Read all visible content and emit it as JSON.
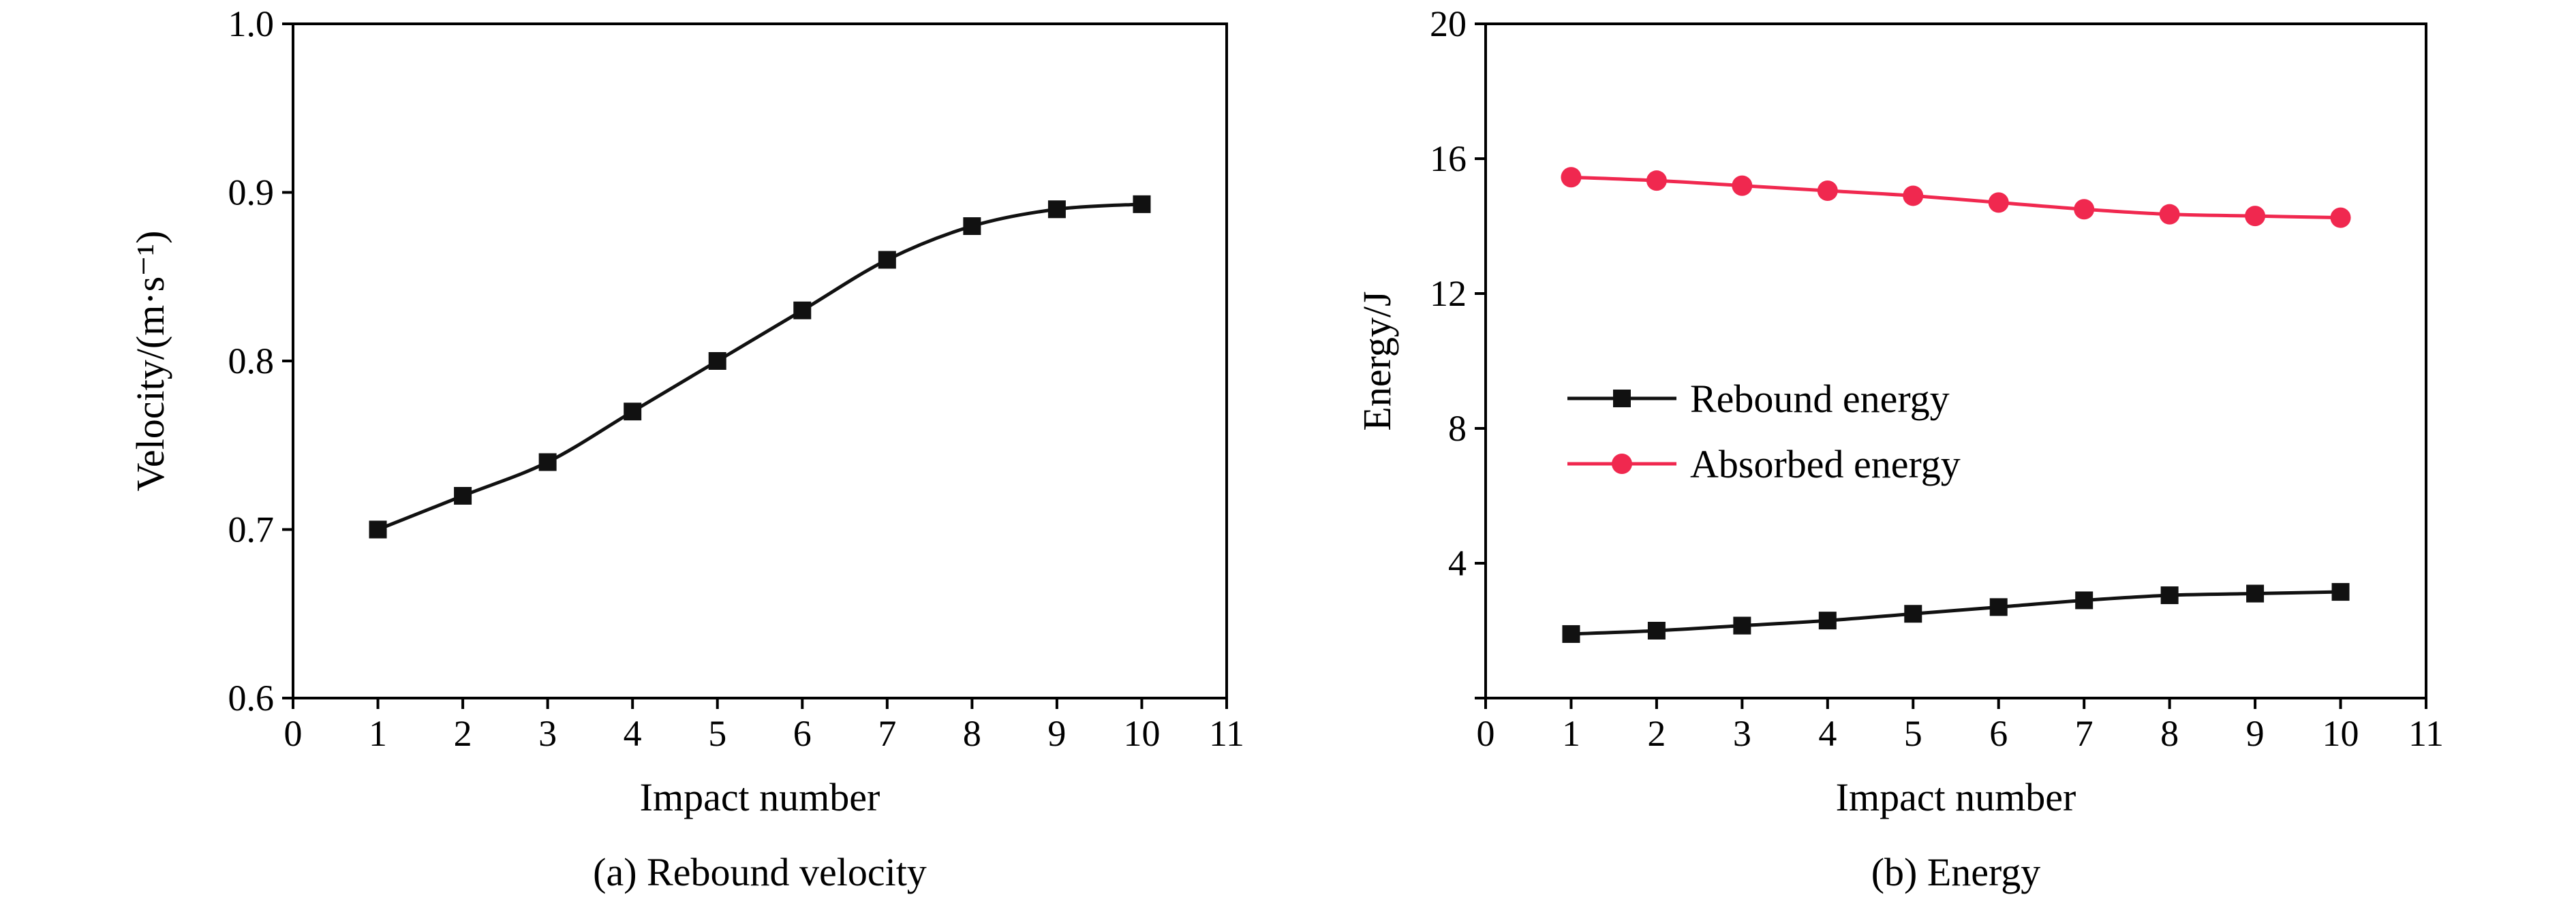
{
  "chart_data": [
    {
      "type": "line",
      "caption": "(a) Rebound velocity",
      "xlabel": "Impact number",
      "ylabel": "Velocity/(m·s⁻¹)",
      "xlim": [
        0,
        11
      ],
      "ylim": [
        0.6,
        1.0
      ],
      "xticks": [
        0,
        1,
        2,
        3,
        4,
        5,
        6,
        7,
        8,
        9,
        10,
        11
      ],
      "yticks": [
        0.6,
        0.7,
        0.8,
        0.9,
        1.0
      ],
      "ytick_labels": [
        "0.6",
        "0.7",
        "0.8",
        "0.9",
        "1.0"
      ],
      "grid": false,
      "legend": null,
      "series": [
        {
          "color": "#111111",
          "marker": "square",
          "x": [
            1,
            2,
            3,
            4,
            5,
            6,
            7,
            8,
            9,
            10
          ],
          "values": [
            0.7,
            0.72,
            0.74,
            0.77,
            0.8,
            0.83,
            0.86,
            0.88,
            0.89,
            0.893
          ]
        }
      ]
    },
    {
      "type": "line",
      "caption": "(b) Energy",
      "xlabel": "Impact number",
      "ylabel": "Energy/J",
      "xlim": [
        0,
        11
      ],
      "ylim": [
        0,
        20
      ],
      "xticks": [
        0,
        1,
        2,
        3,
        4,
        5,
        6,
        7,
        8,
        9,
        10,
        11
      ],
      "yticks": [
        0,
        4,
        8,
        12,
        16,
        20
      ],
      "ytick_labels": [
        "",
        "4",
        "8",
        "12",
        "16",
        "20"
      ],
      "grid": false,
      "legend": "center-left",
      "series": [
        {
          "name": "Rebound energy",
          "color": "#111111",
          "marker": "square",
          "x": [
            1,
            2,
            3,
            4,
            5,
            6,
            7,
            8,
            9,
            10
          ],
          "values": [
            1.9,
            2.0,
            2.15,
            2.3,
            2.5,
            2.7,
            2.9,
            3.05,
            3.1,
            3.15
          ]
        },
        {
          "name": "Absorbed energy",
          "color": "#f0284f",
          "marker": "circle",
          "x": [
            1,
            2,
            3,
            4,
            5,
            6,
            7,
            8,
            9,
            10
          ],
          "values": [
            15.45,
            15.35,
            15.2,
            15.05,
            14.9,
            14.7,
            14.5,
            14.35,
            14.3,
            14.25
          ]
        }
      ]
    }
  ]
}
